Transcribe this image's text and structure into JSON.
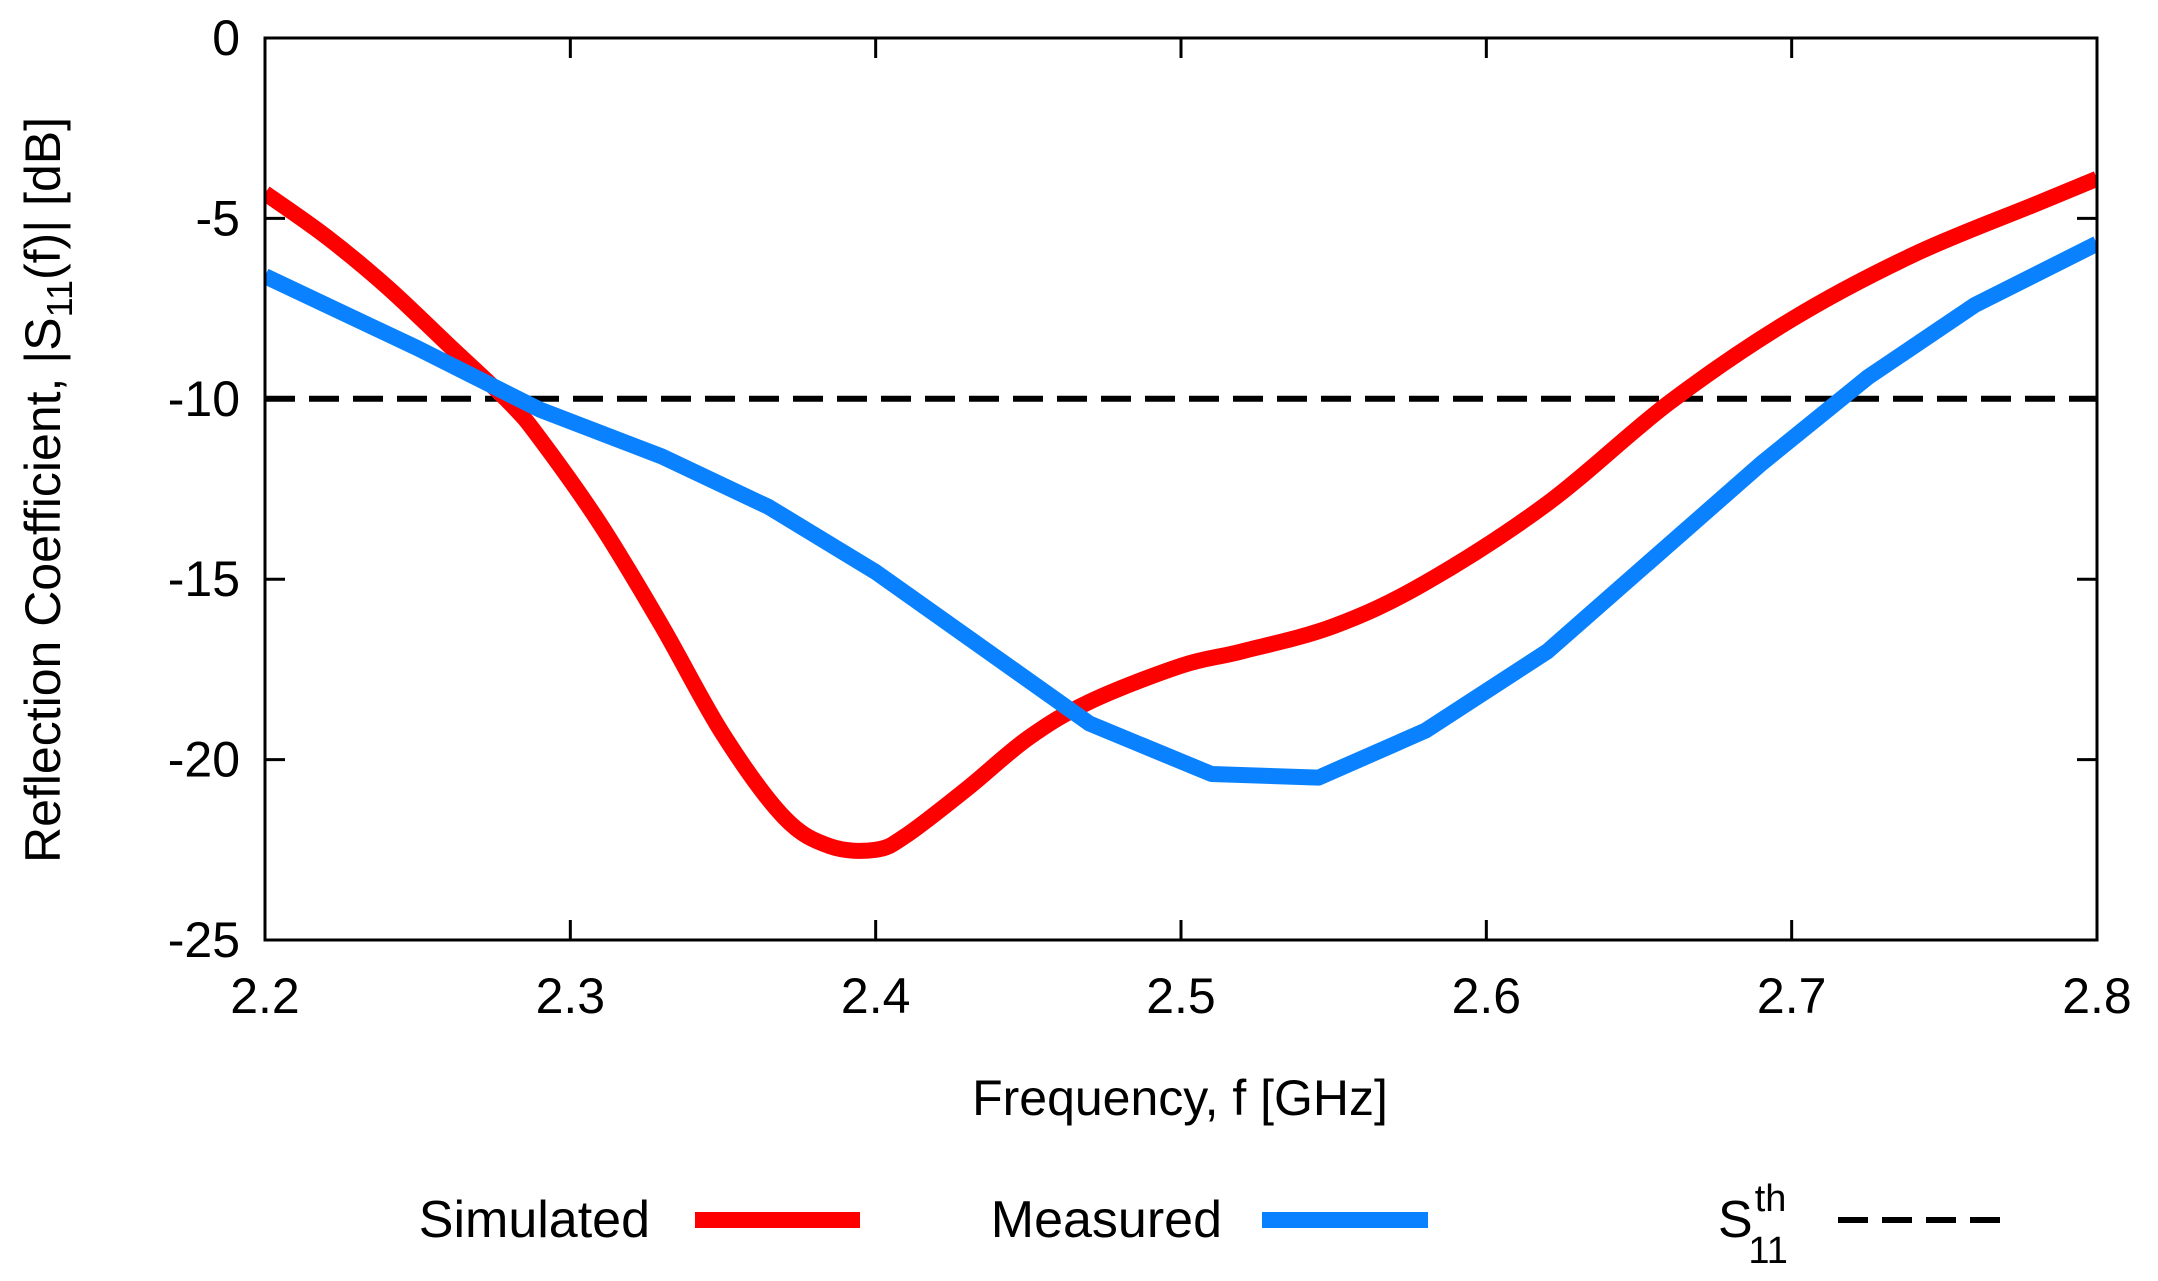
{
  "chart_data": {
    "type": "line",
    "title": "",
    "xlabel": "Frequency, f [GHz]",
    "ylabel": {
      "prefix": "Reflection Coefficient, |S",
      "subscript": "11",
      "suffix": "(f)| [dB]"
    },
    "xlim": [
      2.2,
      2.8
    ],
    "ylim": [
      -25,
      0
    ],
    "x_ticks": [
      2.2,
      2.3,
      2.4,
      2.5,
      2.6,
      2.7,
      2.8
    ],
    "x_tick_labels": [
      "2.2",
      "2.3",
      "2.4",
      "2.5",
      "2.6",
      "2.7",
      "2.8"
    ],
    "y_ticks": [
      0,
      -5,
      -10,
      -15,
      -20,
      -25
    ],
    "y_tick_labels": [
      "0",
      "-5",
      "-10",
      "-15",
      "-20",
      "-25"
    ],
    "grid": false,
    "legend_position": "bottom",
    "series": [
      {
        "name": "Simulated",
        "color": "#ff0000",
        "style": "solid",
        "smooth": true,
        "x": [
          2.2,
          2.22,
          2.24,
          2.26,
          2.28,
          2.29,
          2.31,
          2.33,
          2.35,
          2.37,
          2.385,
          2.4,
          2.41,
          2.43,
          2.45,
          2.47,
          2.5,
          2.52,
          2.55,
          2.58,
          2.62,
          2.66,
          2.7,
          2.74,
          2.78,
          2.8
        ],
        "y": [
          -4.3,
          -5.5,
          -6.9,
          -8.5,
          -10.1,
          -11.1,
          -13.5,
          -16.3,
          -19.3,
          -21.6,
          -22.4,
          -22.5,
          -22.1,
          -20.8,
          -19.4,
          -18.4,
          -17.4,
          -17.0,
          -16.3,
          -15.1,
          -12.9,
          -10.1,
          -7.8,
          -6.0,
          -4.6,
          -3.9
        ]
      },
      {
        "name": "Measured",
        "color": "#0a82ff",
        "style": "solid",
        "smooth": false,
        "x": [
          2.2,
          2.25,
          2.29,
          2.33,
          2.365,
          2.4,
          2.435,
          2.47,
          2.51,
          2.545,
          2.58,
          2.62,
          2.655,
          2.69,
          2.725,
          2.76,
          2.8
        ],
        "y": [
          -6.6,
          -8.6,
          -10.3,
          -11.6,
          -13.0,
          -14.8,
          -16.9,
          -19.0,
          -20.4,
          -20.5,
          -19.2,
          -17.0,
          -14.4,
          -11.8,
          -9.4,
          -7.4,
          -5.7
        ]
      },
      {
        "name": "S11 threshold",
        "color": "#000000",
        "style": "dashed",
        "smooth": false,
        "x": [
          2.2,
          2.8
        ],
        "y": [
          -10,
          -10
        ]
      }
    ],
    "legend": {
      "simulated_label": "Simulated",
      "measured_label": "Measured",
      "threshold_label_base": "S",
      "threshold_label_sup": "th",
      "threshold_label_sub": "11"
    }
  }
}
